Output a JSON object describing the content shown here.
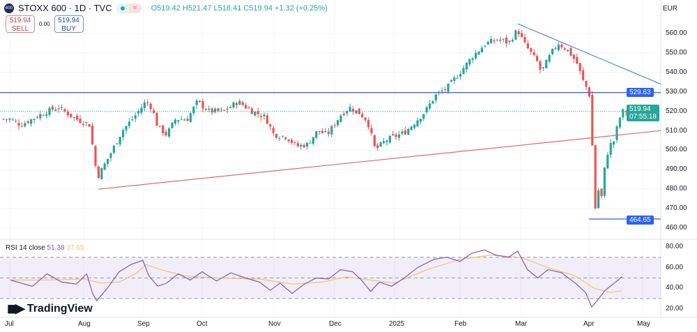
{
  "header": {
    "symbol": "STOXX 600 · 1D · TVC",
    "open": "O519.42",
    "high": "H521.47",
    "low": "L518.41",
    "close": "C519.94",
    "change": "+1.32 (+0.25%)"
  },
  "trade": {
    "sell_price": "519.94",
    "sell_label": "SELL",
    "spread": "0.00",
    "buy_price": "519.94",
    "buy_label": "BUY"
  },
  "currency": "EUR",
  "colors": {
    "up": "#26a69a",
    "down": "#ef5350",
    "line": "#5b7bd6",
    "support": "#d96b6b",
    "rsi": "#7e57c2",
    "rsi_ma": "#f0c75e"
  },
  "tags": {
    "resistance": "529.63",
    "last_price": "519.94",
    "countdown": "07:55:18",
    "low": "464.65"
  },
  "rsi": {
    "label": "RSI 14 close",
    "value": "51.38",
    "ma": "37.65",
    "axis": [
      "80.00",
      "60.00",
      "40.00",
      "20.00"
    ]
  },
  "brand": "TradingView",
  "chart_data": {
    "type": "candlestick",
    "y_axis": [
      "560.00",
      "550.00",
      "540.00",
      "530.00",
      "520.00",
      "510.00",
      "500.00",
      "490.00",
      "480.00",
      "470.00",
      "460.00"
    ],
    "ylim": [
      458,
      566
    ],
    "x_labels": [
      "Jul",
      "Aug",
      "Sep",
      "Oct",
      "Nov",
      "Dec",
      "2025",
      "Feb",
      "Mar",
      "Apr",
      "May"
    ],
    "close_path": [
      [
        0,
        516
      ],
      [
        0.14,
        513
      ],
      [
        0.5,
        520
      ],
      [
        0.65,
        522
      ],
      [
        0.9,
        516
      ],
      [
        1.1,
        513
      ],
      [
        1.2,
        492
      ],
      [
        1.25,
        487
      ],
      [
        1.45,
        498
      ],
      [
        1.65,
        510
      ],
      [
        1.85,
        517
      ],
      [
        2.05,
        525
      ],
      [
        2.15,
        522
      ],
      [
        2.25,
        512
      ],
      [
        2.4,
        508
      ],
      [
        2.55,
        516
      ],
      [
        2.75,
        516
      ],
      [
        2.92,
        525
      ],
      [
        3.1,
        520
      ],
      [
        3.3,
        520
      ],
      [
        3.5,
        525
      ],
      [
        3.7,
        520
      ],
      [
        3.88,
        517
      ],
      [
        4.0,
        508
      ],
      [
        4.2,
        507
      ],
      [
        4.38,
        502
      ],
      [
        4.55,
        503
      ],
      [
        4.72,
        510
      ],
      [
        4.88,
        508
      ],
      [
        5.1,
        518
      ],
      [
        5.25,
        522
      ],
      [
        5.42,
        519
      ],
      [
        5.55,
        515
      ],
      [
        5.68,
        500
      ],
      [
        5.85,
        505
      ],
      [
        6.15,
        509
      ],
      [
        6.3,
        514
      ],
      [
        6.47,
        520
      ],
      [
        6.62,
        528
      ],
      [
        6.8,
        532
      ],
      [
        7.0,
        540
      ],
      [
        7.2,
        548
      ],
      [
        7.43,
        555
      ],
      [
        7.65,
        557
      ],
      [
        7.8,
        555
      ],
      [
        7.95,
        562
      ],
      [
        8.05,
        555
      ],
      [
        8.25,
        545
      ],
      [
        8.3,
        540
      ],
      [
        8.45,
        550
      ],
      [
        8.55,
        555
      ],
      [
        8.7,
        551
      ],
      [
        8.82,
        545
      ],
      [
        8.92,
        535
      ],
      [
        9.0,
        530
      ],
      [
        9.04,
        518
      ],
      [
        9.08,
        490
      ],
      [
        9.12,
        470
      ],
      [
        9.17,
        480
      ],
      [
        9.23,
        475
      ],
      [
        9.29,
        490
      ],
      [
        9.37,
        502
      ],
      [
        9.47,
        505
      ],
      [
        9.55,
        515
      ],
      [
        9.62,
        519.94
      ]
    ],
    "lines": {
      "resistance": 529.63,
      "low": 464.65,
      "last": 519.94,
      "support_trend": [
        [
          1.25,
          480
        ],
        [
          10.3,
          511
        ]
      ],
      "down_trend": [
        [
          7.95,
          565
        ],
        [
          10.3,
          534
        ]
      ]
    },
    "rsi_path": [
      [
        0,
        48
      ],
      [
        0.3,
        42
      ],
      [
        0.5,
        54
      ],
      [
        0.7,
        46
      ],
      [
        0.9,
        44
      ],
      [
        1.05,
        54
      ],
      [
        1.15,
        35
      ],
      [
        1.22,
        28
      ],
      [
        1.4,
        40
      ],
      [
        1.6,
        56
      ],
      [
        1.8,
        63
      ],
      [
        2.0,
        67
      ],
      [
        2.1,
        52
      ],
      [
        2.25,
        42
      ],
      [
        2.4,
        45
      ],
      [
        2.6,
        54
      ],
      [
        2.8,
        48
      ],
      [
        3.0,
        56
      ],
      [
        3.2,
        47
      ],
      [
        3.4,
        55
      ],
      [
        3.6,
        50
      ],
      [
        3.8,
        46
      ],
      [
        3.95,
        38
      ],
      [
        4.1,
        45
      ],
      [
        4.3,
        35
      ],
      [
        4.5,
        44
      ],
      [
        4.7,
        50
      ],
      [
        4.9,
        49
      ],
      [
        5.1,
        58
      ],
      [
        5.3,
        56
      ],
      [
        5.45,
        48
      ],
      [
        5.6,
        37
      ],
      [
        5.75,
        46
      ],
      [
        5.95,
        42
      ],
      [
        6.15,
        50
      ],
      [
        6.35,
        60
      ],
      [
        6.6,
        68
      ],
      [
        6.8,
        70
      ],
      [
        7.0,
        66
      ],
      [
        7.2,
        74
      ],
      [
        7.4,
        77
      ],
      [
        7.6,
        72
      ],
      [
        7.8,
        70
      ],
      [
        7.95,
        76
      ],
      [
        8.1,
        58
      ],
      [
        8.25,
        50
      ],
      [
        8.4,
        58
      ],
      [
        8.6,
        55
      ],
      [
        8.8,
        45
      ],
      [
        8.95,
        36
      ],
      [
        9.05,
        22
      ],
      [
        9.15,
        28
      ],
      [
        9.3,
        38
      ],
      [
        9.45,
        44
      ],
      [
        9.62,
        51.38
      ]
    ],
    "rsi_ma_path": [
      [
        0,
        48
      ],
      [
        0.5,
        48
      ],
      [
        1.0,
        49
      ],
      [
        1.3,
        45
      ],
      [
        1.6,
        46
      ],
      [
        1.9,
        55
      ],
      [
        2.05,
        63
      ],
      [
        2.3,
        58
      ],
      [
        2.7,
        52
      ],
      [
        3.2,
        50
      ],
      [
        3.8,
        49
      ],
      [
        4.3,
        44
      ],
      [
        4.8,
        46
      ],
      [
        5.2,
        51
      ],
      [
        5.6,
        48
      ],
      [
        6.0,
        45
      ],
      [
        6.5,
        58
      ],
      [
        7.0,
        68
      ],
      [
        7.5,
        72
      ],
      [
        8.0,
        70
      ],
      [
        8.4,
        60
      ],
      [
        8.8,
        52
      ],
      [
        9.1,
        40
      ],
      [
        9.4,
        36
      ],
      [
        9.62,
        37.65
      ]
    ]
  }
}
